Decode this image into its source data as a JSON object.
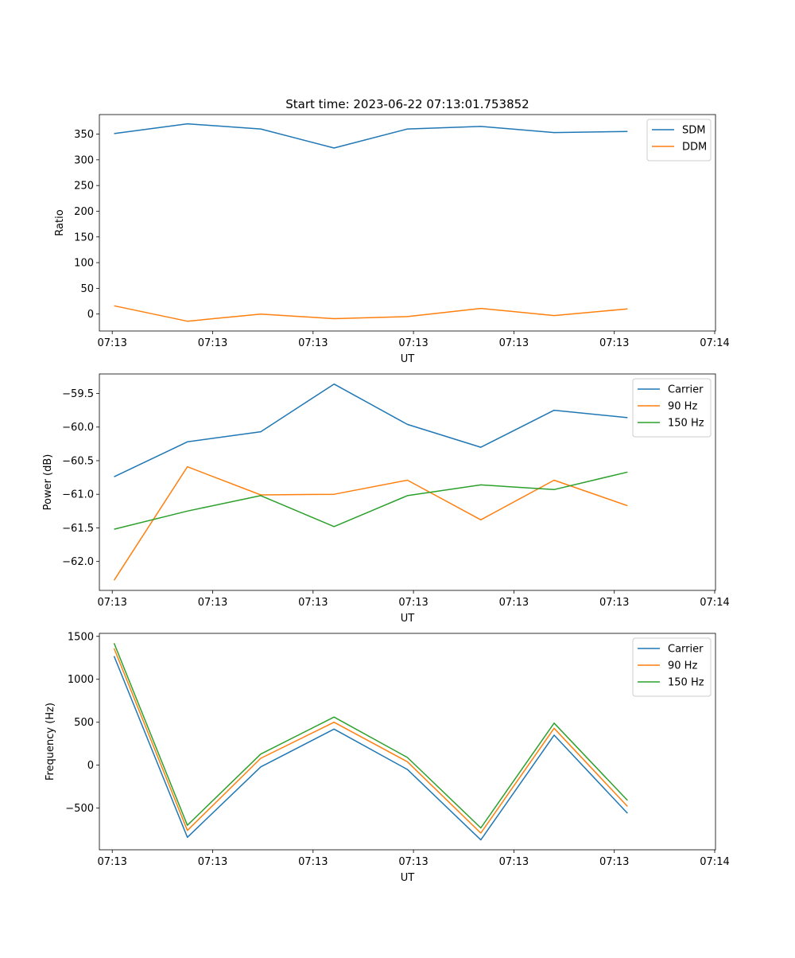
{
  "figure_title": "Start time: 2023-06-22 07:13:01.753852",
  "x_tick_labels": [
    "07:13",
    "07:13",
    "07:13",
    "07:13",
    "07:13",
    "07:13",
    "07:14"
  ],
  "chart_data": [
    {
      "type": "line",
      "title": "Start time: 2023-06-22 07:13:01.753852",
      "xlabel": "UT",
      "ylabel": "Ratio",
      "x": [
        1,
        2,
        3,
        4,
        5,
        6,
        7,
        8
      ],
      "xlim": [
        0.8,
        9.2
      ],
      "ylim": [
        -33,
        388
      ],
      "yticks": [
        0,
        50,
        100,
        150,
        200,
        250,
        300,
        350
      ],
      "ytick_labels": [
        "0",
        "50",
        "100",
        "150",
        "200",
        "250",
        "300",
        "350"
      ],
      "legend_position": "top-right",
      "series": [
        {
          "name": "SDM",
          "color": "#1f77b4",
          "values": [
            351,
            370,
            360,
            323,
            360,
            365,
            353,
            355
          ]
        },
        {
          "name": "DDM",
          "color": "#ff7f0e",
          "values": [
            16,
            -14,
            0,
            -9,
            -5,
            11,
            -3,
            10
          ]
        }
      ]
    },
    {
      "type": "line",
      "xlabel": "UT",
      "ylabel": "Power (dB)",
      "x": [
        1,
        2,
        3,
        4,
        5,
        6,
        7,
        8
      ],
      "xlim": [
        0.8,
        9.2
      ],
      "ylim": [
        -62.43,
        -59.21
      ],
      "yticks": [
        -62.0,
        -61.5,
        -61.0,
        -60.5,
        -60.0,
        -59.5
      ],
      "ytick_labels": [
        "−62.0",
        "−61.5",
        "−61.0",
        "−60.5",
        "−60.0",
        "−59.5"
      ],
      "legend_position": "top-right",
      "series": [
        {
          "name": "Carrier",
          "color": "#1f77b4",
          "values": [
            -60.74,
            -60.22,
            -60.07,
            -59.36,
            -59.96,
            -60.3,
            -59.75,
            -59.86
          ]
        },
        {
          "name": "90 Hz",
          "color": "#ff7f0e",
          "values": [
            -62.28,
            -60.59,
            -61.01,
            -61.0,
            -60.79,
            -61.38,
            -60.79,
            -61.17
          ]
        },
        {
          "name": "150 Hz",
          "color": "#2ca02c",
          "values": [
            -61.52,
            -61.25,
            -61.02,
            -61.48,
            -61.02,
            -60.86,
            -60.93,
            -60.67
          ]
        }
      ]
    },
    {
      "type": "line",
      "xlabel": "UT",
      "ylabel": "Frequency (Hz)",
      "x": [
        1,
        2,
        3,
        4,
        5,
        6,
        7,
        8
      ],
      "xlim": [
        0.8,
        9.2
      ],
      "ylim": [
        -985,
        1535
      ],
      "yticks": [
        -500,
        0,
        500,
        1000,
        1500
      ],
      "ytick_labels": [
        "−500",
        "0",
        "500",
        "1000",
        "1500"
      ],
      "legend_position": "top-right",
      "series": [
        {
          "name": "Carrier",
          "color": "#1f77b4",
          "values": [
            1270,
            -840,
            -20,
            420,
            -50,
            -870,
            350,
            -560
          ]
        },
        {
          "name": "90 Hz",
          "color": "#ff7f0e",
          "values": [
            1360,
            -760,
            80,
            500,
            40,
            -790,
            430,
            -480
          ]
        },
        {
          "name": "150 Hz",
          "color": "#2ca02c",
          "values": [
            1420,
            -700,
            130,
            560,
            90,
            -730,
            490,
            -410
          ]
        }
      ]
    }
  ]
}
